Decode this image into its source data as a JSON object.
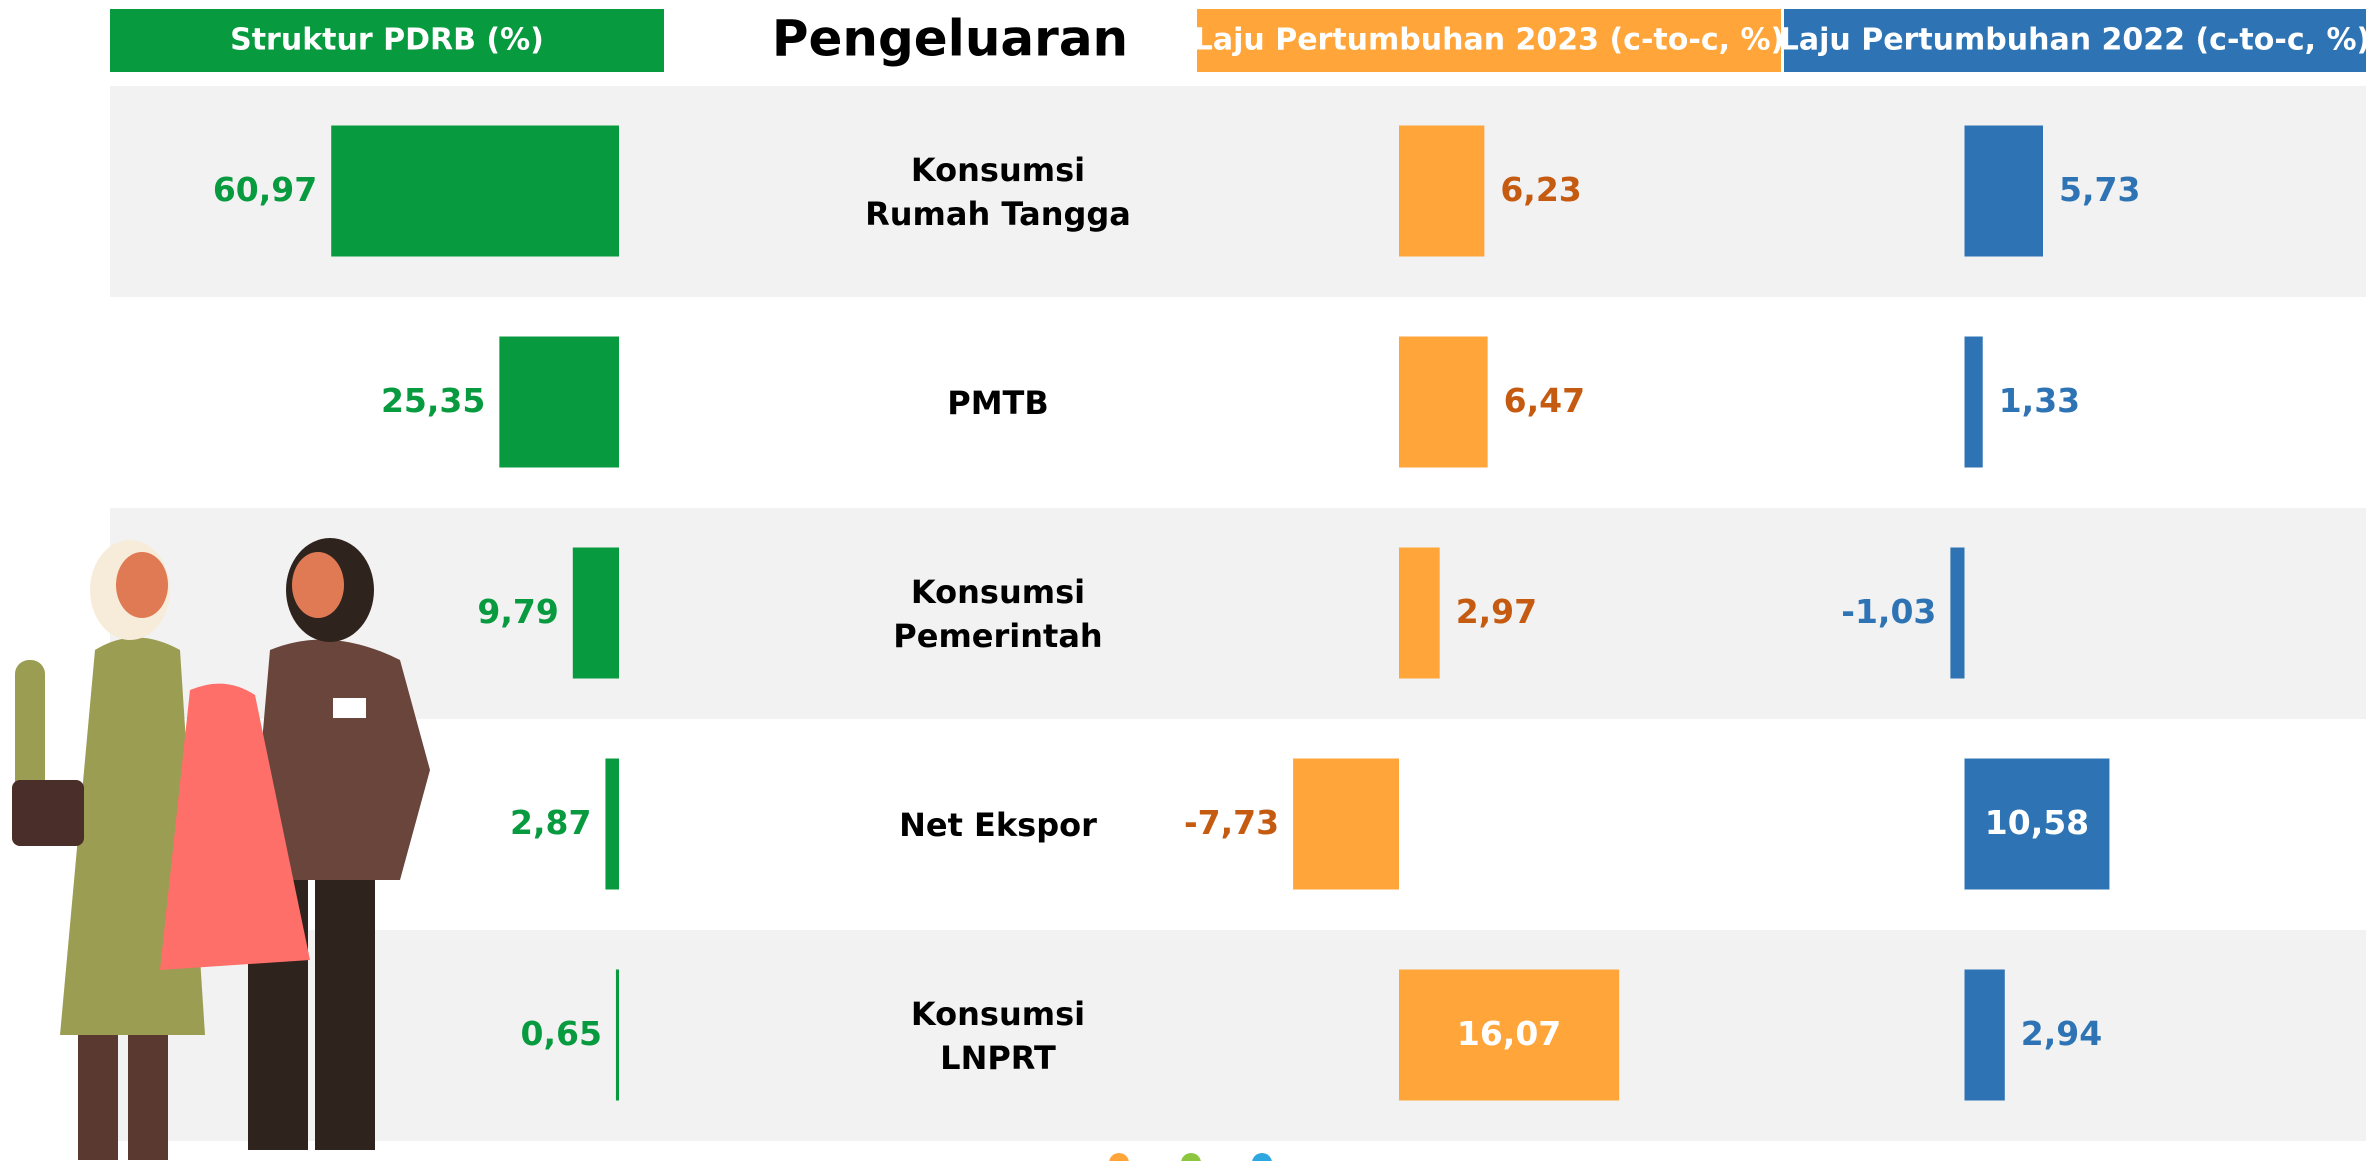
{
  "header": "Pengeluaran",
  "categories": [
    "Konsumsi\nRumah Tangga",
    "PMTB",
    "Konsumsi\nPemerintah",
    "Net Ekspor",
    "Konsumsi\nLNPRT"
  ],
  "chart_data": [
    {
      "type": "bar",
      "orientation": "horizontal",
      "title": "Struktur PDRB (%)",
      "color": "#079a3f",
      "label_color": "#079a3f",
      "xaxis_reversed": true,
      "xlim": [
        0,
        100
      ],
      "values": [
        60.97,
        25.35,
        9.79,
        2.87,
        0.65
      ],
      "value_labels": [
        "60,97",
        "25,35",
        "9,79",
        "2,87",
        "0,65"
      ]
    },
    {
      "type": "bar",
      "orientation": "horizontal",
      "title": "Laju Pertumbuhan 2023  (c-to-c, %)",
      "color": "#ffa53a",
      "label_color": "#c55a11",
      "xlim": [
        -10,
        20
      ],
      "values": [
        6.23,
        6.47,
        2.97,
        -7.73,
        16.07
      ],
      "value_labels": [
        "6,23",
        "6,47",
        "2,97",
        "-7,73",
        "16,07"
      ]
    },
    {
      "type": "bar",
      "orientation": "horizontal",
      "title": "Laju Pertumbuhan 2022 (c-to-c, %)",
      "color": "#2e74b5",
      "label_color": "#2e74b5",
      "xlim": [
        -5,
        25
      ],
      "values": [
        5.73,
        1.33,
        -1.03,
        10.58,
        2.94
      ],
      "value_labels": [
        "5,73",
        "1,33",
        "-1,03",
        "10,58",
        "2,94"
      ]
    }
  ]
}
